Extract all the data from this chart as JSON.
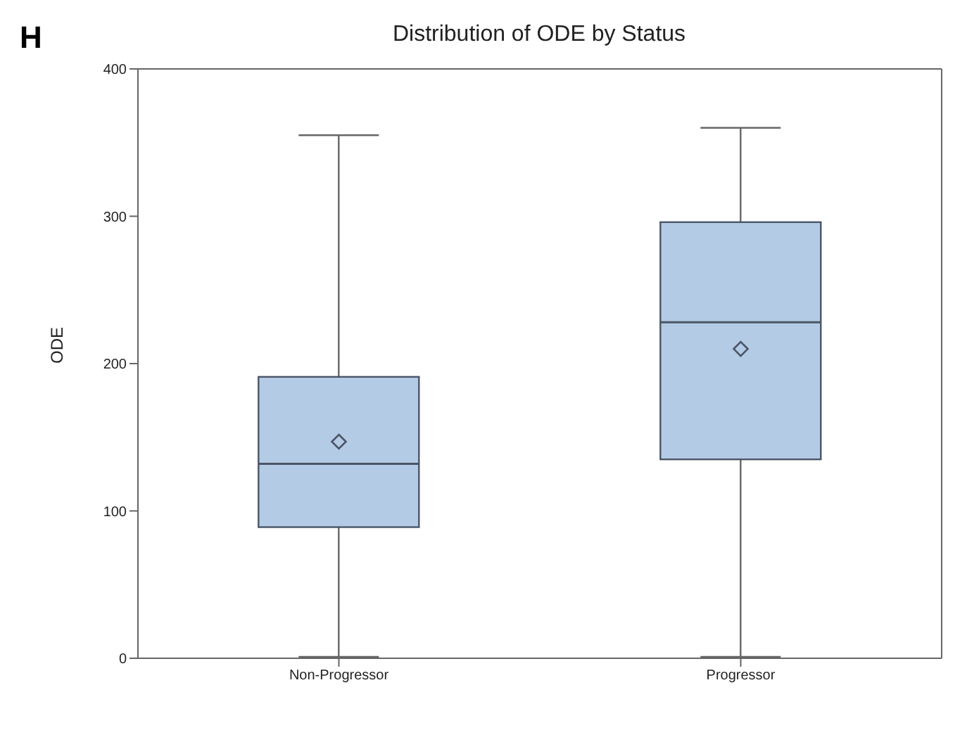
{
  "chart_data": {
    "type": "box",
    "title": "Distribution of ODE by Status",
    "ylabel": "ODE",
    "annotations": [
      "H"
    ],
    "categories": [
      "Non-Progressor",
      "Progressor"
    ],
    "series": [
      {
        "color": "#b4cbe5",
        "boxes": [
          {
            "low": 1,
            "q1": 89,
            "median": 132,
            "q3": 191,
            "high": 355,
            "mean": 147
          },
          {
            "low": 1,
            "q1": 135,
            "median": 228,
            "q3": 296,
            "high": 360,
            "mean": 210
          }
        ]
      }
    ],
    "ylim": [
      0,
      400
    ],
    "yticks": [
      0,
      100,
      200,
      300,
      400
    ],
    "grid": false,
    "marker": "diamond",
    "legend": false
  }
}
